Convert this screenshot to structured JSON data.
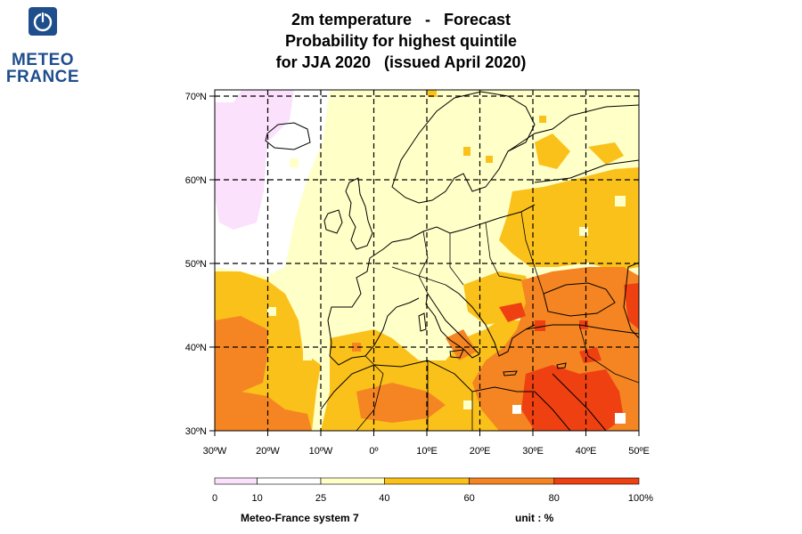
{
  "logo": {
    "line1": "METEO",
    "line2": "FRANCE",
    "icon": "meteo-france-logo-icon"
  },
  "title": {
    "line1": "2m temperature   -   Forecast",
    "line2": "Probability for highest quintile",
    "line3": "for JJA 2020   (issued April 2020)"
  },
  "map": {
    "lon_range": [
      -30,
      50
    ],
    "lat_range": [
      30,
      71
    ],
    "grid_style": "dashed",
    "lat_ticks": [
      {
        "value": 70,
        "label": "70ºN"
      },
      {
        "value": 60,
        "label": "60ºN"
      },
      {
        "value": 50,
        "label": "50ºN"
      },
      {
        "value": 40,
        "label": "40ºN"
      },
      {
        "value": 30,
        "label": "30ºN"
      }
    ],
    "lon_ticks": [
      {
        "value": -30,
        "label": "30ºW"
      },
      {
        "value": -20,
        "label": "20ºW"
      },
      {
        "value": -10,
        "label": "10ºW"
      },
      {
        "value": 0,
        "label": "0º"
      },
      {
        "value": 10,
        "label": "10ºE"
      },
      {
        "value": 20,
        "label": "20ºE"
      },
      {
        "value": 30,
        "label": "30ºE"
      },
      {
        "value": 40,
        "label": "40ºE"
      },
      {
        "value": 50,
        "label": "50ºE"
      }
    ]
  },
  "colorbar": {
    "bins": [
      {
        "from": 0,
        "to": 10,
        "color": "#fbe1fb"
      },
      {
        "from": 10,
        "to": 25,
        "color": "#ffffff"
      },
      {
        "from": 25,
        "to": 40,
        "color": "#ffffc8"
      },
      {
        "from": 40,
        "to": 60,
        "color": "#fbc11b"
      },
      {
        "from": 60,
        "to": 80,
        "color": "#f58522"
      },
      {
        "from": 80,
        "to": 100,
        "color": "#ee4011"
      }
    ],
    "tick_labels": [
      "0",
      "10",
      "25",
      "40",
      "60",
      "80",
      "100%"
    ]
  },
  "footer": {
    "system": "Meteo-France system 7",
    "unit": "unit : %"
  }
}
